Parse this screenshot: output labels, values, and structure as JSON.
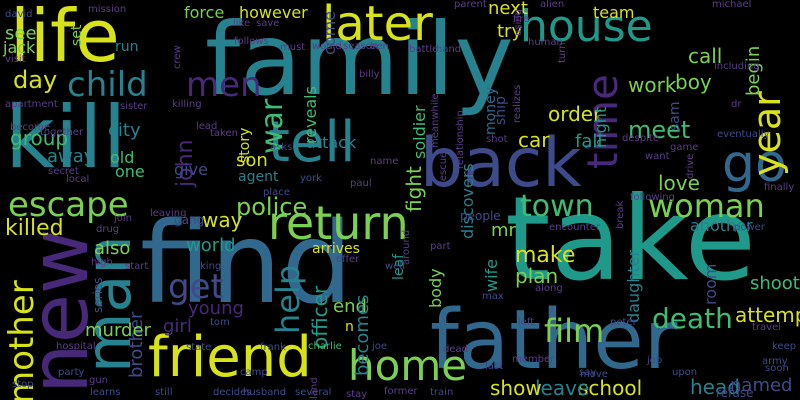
{
  "palette": {
    "yellow": "#d7e219",
    "lime": "#7ad151",
    "green": "#3fbc73",
    "teal": "#1f9a8a",
    "tealblue": "#26828e",
    "blue": "#31688e",
    "indigo": "#3e4a89",
    "violet": "#482878",
    "purple": "#440154",
    "dim": "#5b3c87"
  },
  "words": [
    {
      "text": "family",
      "color": "tealblue"
    },
    {
      "text": "find",
      "color": "blue"
    },
    {
      "text": "take",
      "color": "teal"
    },
    {
      "text": "kill",
      "color": "tealblue"
    },
    {
      "text": "life",
      "color": "yellow"
    },
    {
      "text": "father",
      "color": "blue"
    },
    {
      "text": "back",
      "color": "indigo"
    },
    {
      "text": "tell",
      "color": "tealblue"
    },
    {
      "text": "new",
      "color": "violet"
    },
    {
      "text": "friend",
      "color": "yellow"
    },
    {
      "text": "home",
      "color": "lime"
    },
    {
      "text": "house",
      "color": "teal"
    },
    {
      "text": "later",
      "color": "yellow"
    },
    {
      "text": "go",
      "color": "blue"
    },
    {
      "text": "return",
      "color": "lime"
    },
    {
      "text": "man",
      "color": "tealblue"
    },
    {
      "text": "child",
      "color": "tealblue"
    },
    {
      "text": "men",
      "color": "violet"
    },
    {
      "text": "escape",
      "color": "lime"
    },
    {
      "text": "time",
      "color": "violet"
    },
    {
      "text": "town",
      "color": "green"
    },
    {
      "text": "woman",
      "color": "lime"
    },
    {
      "text": "year",
      "color": "yellow"
    },
    {
      "text": "mother",
      "color": "yellow"
    },
    {
      "text": "get",
      "color": "indigo"
    },
    {
      "text": "help",
      "color": "tealblue"
    },
    {
      "text": "war",
      "color": "green"
    },
    {
      "text": "day",
      "color": "yellow"
    },
    {
      "text": "film",
      "color": "lime"
    },
    {
      "text": "death",
      "color": "green"
    },
    {
      "text": "police",
      "color": "lime"
    },
    {
      "text": "killed",
      "color": "yellow"
    },
    {
      "text": "school",
      "color": "yellow"
    },
    {
      "text": "leave",
      "color": "tealblue"
    },
    {
      "text": "show",
      "color": "yellow"
    },
    {
      "text": "make",
      "color": "yellow"
    },
    {
      "text": "plan",
      "color": "lime"
    },
    {
      "text": "attempt",
      "color": "yellow"
    },
    {
      "text": "love",
      "color": "lime"
    },
    {
      "text": "meet",
      "color": "green"
    },
    {
      "text": "work",
      "color": "lime"
    },
    {
      "text": "call",
      "color": "lime"
    },
    {
      "text": "begin",
      "color": "lime"
    },
    {
      "text": "boy",
      "color": "lime"
    },
    {
      "text": "son",
      "color": "yellow"
    },
    {
      "text": "john",
      "color": "violet"
    },
    {
      "text": "end",
      "color": "lime"
    },
    {
      "text": "becomes",
      "color": "tealblue"
    },
    {
      "text": "officer",
      "color": "teal"
    },
    {
      "text": "young",
      "color": "violet"
    },
    {
      "text": "girl",
      "color": "violet"
    },
    {
      "text": "brother",
      "color": "indigo"
    },
    {
      "text": "world",
      "color": "teal"
    },
    {
      "text": "also",
      "color": "lime"
    },
    {
      "text": "way",
      "color": "yellow"
    },
    {
      "text": "murder",
      "color": "lime"
    },
    {
      "text": "head",
      "color": "tealblue"
    },
    {
      "text": "named",
      "color": "indigo"
    },
    {
      "text": "shoot",
      "color": "green"
    },
    {
      "text": "arrives",
      "color": "yellow"
    },
    {
      "text": "leaf",
      "color": "teal"
    },
    {
      "text": "car",
      "color": "yellow"
    },
    {
      "text": "order",
      "color": "yellow"
    },
    {
      "text": "fall",
      "color": "teal"
    },
    {
      "text": "next",
      "color": "yellow"
    },
    {
      "text": "try",
      "color": "yellow"
    },
    {
      "text": "mr",
      "color": "lime"
    },
    {
      "text": "group",
      "color": "green"
    },
    {
      "text": "city",
      "color": "tealblue"
    },
    {
      "text": "away",
      "color": "tealblue"
    },
    {
      "text": "old",
      "color": "green"
    },
    {
      "text": "one",
      "color": "green"
    },
    {
      "text": "give",
      "color": "indigo"
    },
    {
      "text": "agent",
      "color": "tealblue"
    },
    {
      "text": "story",
      "color": "yellow"
    },
    {
      "text": "attack",
      "color": "tealblue"
    },
    {
      "text": "fight",
      "color": "lime"
    },
    {
      "text": "discovers",
      "color": "tealblue"
    },
    {
      "text": "soldier",
      "color": "green"
    },
    {
      "text": "ship",
      "color": "indigo"
    },
    {
      "text": "money",
      "color": "blue"
    },
    {
      "text": "night",
      "color": "teal"
    },
    {
      "text": "sam",
      "color": "indigo"
    },
    {
      "text": "daughter",
      "color": "tealblue"
    },
    {
      "text": "wife",
      "color": "teal"
    },
    {
      "text": "body",
      "color": "lime"
    },
    {
      "text": "another",
      "color": "tealblue"
    },
    {
      "text": "room",
      "color": "indigo"
    },
    {
      "text": "see",
      "color": "lime"
    },
    {
      "text": "jack",
      "color": "lime"
    },
    {
      "text": "force",
      "color": "lime"
    },
    {
      "text": "however",
      "color": "yellow"
    },
    {
      "text": "reveals",
      "color": "green"
    },
    {
      "text": "come",
      "color": "indigo"
    },
    {
      "text": "team",
      "color": "yellow"
    },
    {
      "text": "set",
      "color": "lime"
    },
    {
      "text": "run",
      "color": "tealblue"
    },
    {
      "text": "n",
      "color": "yellow"
    },
    {
      "text": "gang",
      "color": "indigo"
    },
    {
      "text": "series",
      "color": "indigo"
    },
    {
      "text": "party",
      "color": "indigo"
    },
    {
      "text": "learns",
      "color": "indigo"
    },
    {
      "text": "camp",
      "color": "indigo"
    },
    {
      "text": "decides",
      "color": "indigo"
    },
    {
      "text": "husband",
      "color": "indigo"
    },
    {
      "text": "several",
      "color": "indigo"
    },
    {
      "text": "frank",
      "color": "indigo"
    },
    {
      "text": "charlie",
      "color": "green"
    },
    {
      "text": "state",
      "color": "indigo"
    },
    {
      "text": "joe",
      "color": "indigo"
    },
    {
      "text": "still",
      "color": "indigo"
    },
    {
      "text": "stop",
      "color": "indigo"
    },
    {
      "text": "train",
      "color": "indigo"
    },
    {
      "text": "refuse",
      "color": "indigo"
    },
    {
      "text": "last",
      "color": "indigo"
    },
    {
      "text": "say",
      "color": "indigo"
    },
    {
      "text": "left",
      "color": "indigo"
    },
    {
      "text": "peter",
      "color": "indigo"
    },
    {
      "text": "max",
      "color": "indigo"
    },
    {
      "text": "well",
      "color": "indigo"
    },
    {
      "text": "king",
      "color": "indigo"
    },
    {
      "text": "people",
      "color": "indigo"
    },
    {
      "text": "upon",
      "color": "indigo"
    },
    {
      "text": "job",
      "color": "indigo"
    },
    {
      "text": "keep",
      "color": "indigo"
    },
    {
      "text": "army",
      "color": "indigo"
    },
    {
      "text": "soon",
      "color": "indigo"
    },
    {
      "text": "move",
      "color": "indigo"
    },
    {
      "text": "power",
      "color": "indigo"
    },
    {
      "text": "eventually",
      "color": "indigo"
    },
    {
      "text": "asks",
      "color": "indigo"
    },
    {
      "text": "place",
      "color": "indigo"
    },
    {
      "text": "york",
      "color": "indigo"
    },
    {
      "text": "tom",
      "color": "indigo"
    },
    {
      "text": "david",
      "color": "indigo"
    },
    {
      "text": "mission",
      "color": "dim"
    },
    {
      "text": "using",
      "color": "dim"
    },
    {
      "text": "parent",
      "color": "dim"
    },
    {
      "text": "alien",
      "color": "dim"
    },
    {
      "text": "michael",
      "color": "dim"
    },
    {
      "text": "follows",
      "color": "dim"
    },
    {
      "text": "must",
      "color": "dim"
    },
    {
      "text": "would",
      "color": "dim"
    },
    {
      "text": "season",
      "color": "dim"
    },
    {
      "text": "ben",
      "color": "dim"
    },
    {
      "text": "battle",
      "color": "dim"
    },
    {
      "text": "hand",
      "color": "dim"
    },
    {
      "text": "human",
      "color": "dim"
    },
    {
      "text": "turn",
      "color": "dim"
    },
    {
      "text": "including",
      "color": "dim"
    },
    {
      "text": "visit",
      "color": "dim"
    },
    {
      "text": "billy",
      "color": "dim"
    },
    {
      "text": "sister",
      "color": "dim"
    },
    {
      "text": "killing",
      "color": "dim"
    },
    {
      "text": "meanwhile",
      "color": "dim"
    },
    {
      "text": "relationship",
      "color": "dim"
    },
    {
      "text": "realizes",
      "color": "dim"
    },
    {
      "text": "despite",
      "color": "dim"
    },
    {
      "text": "together",
      "color": "dim"
    },
    {
      "text": "become",
      "color": "dim"
    },
    {
      "text": "lead",
      "color": "dim"
    },
    {
      "text": "taken",
      "color": "dim"
    },
    {
      "text": "name",
      "color": "dim"
    },
    {
      "text": "shot",
      "color": "dim"
    },
    {
      "text": "want",
      "color": "dim"
    },
    {
      "text": "game",
      "color": "dim"
    },
    {
      "text": "drive",
      "color": "dim"
    },
    {
      "text": "finally",
      "color": "dim"
    },
    {
      "text": "secret",
      "color": "dim"
    },
    {
      "text": "local",
      "color": "dim"
    },
    {
      "text": "paul",
      "color": "dim"
    },
    {
      "text": "rescue",
      "color": "dim"
    },
    {
      "text": "following",
      "color": "dim"
    },
    {
      "text": "break",
      "color": "dim"
    },
    {
      "text": "join",
      "color": "dim"
    },
    {
      "text": "leaving",
      "color": "dim"
    },
    {
      "text": "drug",
      "color": "dim"
    },
    {
      "text": "encounter",
      "color": "dim"
    },
    {
      "text": "around",
      "color": "dim"
    },
    {
      "text": "part",
      "color": "dim"
    },
    {
      "text": "high",
      "color": "dim"
    },
    {
      "text": "start",
      "color": "dim"
    },
    {
      "text": "offer",
      "color": "dim"
    },
    {
      "text": "along",
      "color": "dim"
    },
    {
      "text": "dead",
      "color": "dim"
    },
    {
      "text": "member",
      "color": "dim"
    },
    {
      "text": "gun",
      "color": "dim"
    },
    {
      "text": "island",
      "color": "dim"
    },
    {
      "text": "stay",
      "color": "dim"
    },
    {
      "text": "former",
      "color": "dim"
    },
    {
      "text": "hospital",
      "color": "dim"
    },
    {
      "text": "travel",
      "color": "dim"
    },
    {
      "text": "apartment",
      "color": "dim"
    },
    {
      "text": "like",
      "color": "dim"
    },
    {
      "text": "save",
      "color": "dim"
    },
    {
      "text": "crew",
      "color": "dim"
    },
    {
      "text": "fire",
      "color": "dim"
    },
    {
      "text": "dr",
      "color": "dim"
    },
    {
      "text": "open",
      "color": "dim"
    }
  ]
}
